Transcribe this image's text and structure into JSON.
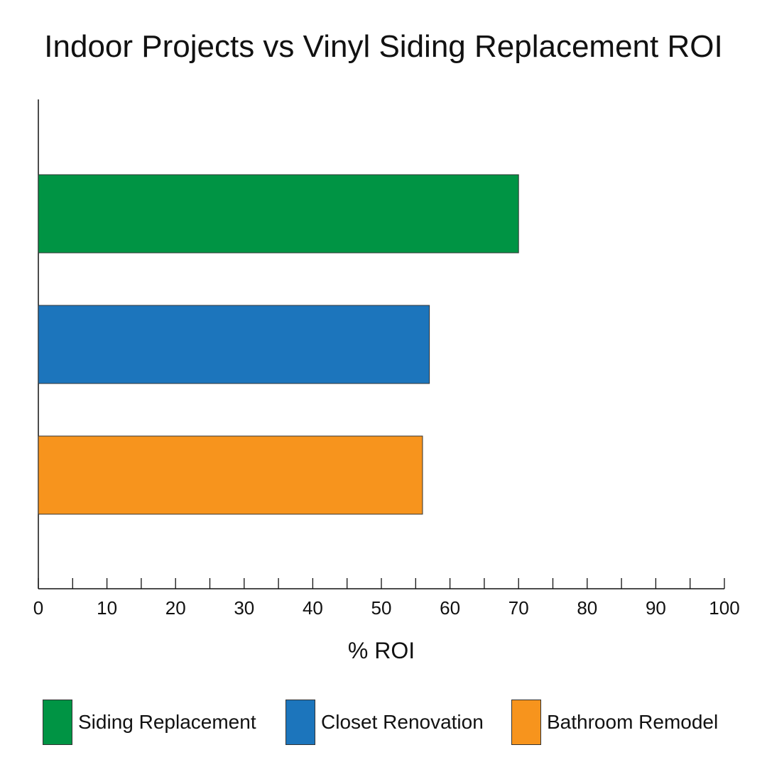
{
  "chart_data": {
    "type": "bar",
    "orientation": "horizontal",
    "title": "Indoor Projects vs Vinyl Siding Replacement ROI",
    "xlabel": "% ROI",
    "ylabel": "",
    "xlim": [
      0,
      100
    ],
    "x_ticks": [
      0,
      10,
      20,
      30,
      40,
      50,
      60,
      70,
      80,
      90,
      100
    ],
    "minor_tick_step": 5,
    "grid": false,
    "legend_position": "bottom",
    "categories": [
      "Siding Replacement",
      "Closet Renovation",
      "Bathroom Remodel"
    ],
    "values": [
      70,
      57,
      56
    ],
    "colors": [
      "#009444",
      "#1c75bc",
      "#f7941d"
    ]
  }
}
